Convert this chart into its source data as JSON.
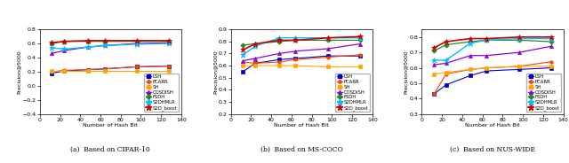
{
  "x": [
    12,
    24,
    48,
    64,
    96,
    128
  ],
  "cifar10": {
    "LSH": [
      0.18,
      0.21,
      0.23,
      0.24,
      0.27,
      0.28
    ],
    "PCARR": [
      0.2,
      0.22,
      0.23,
      0.24,
      0.27,
      0.28
    ],
    "SH": [
      0.21,
      0.21,
      0.21,
      0.21,
      0.21,
      0.21
    ],
    "COSDISH": [
      0.46,
      0.5,
      0.55,
      0.57,
      0.6,
      0.61
    ],
    "FSDH": [
      0.6,
      0.63,
      0.63,
      0.63,
      0.63,
      0.63
    ],
    "S2DHMLR": [
      0.54,
      0.52,
      0.55,
      0.57,
      0.59,
      0.6
    ],
    "S2D_boost": [
      0.61,
      0.63,
      0.64,
      0.64,
      0.64,
      0.64
    ]
  },
  "mscoco": {
    "LSH": [
      0.55,
      0.62,
      0.65,
      0.66,
      0.68,
      0.68
    ],
    "PCARR": [
      0.63,
      0.62,
      0.63,
      0.65,
      0.67,
      0.69
    ],
    "SH": [
      0.6,
      0.6,
      0.6,
      0.6,
      0.59,
      0.59
    ],
    "COSDISH": [
      0.64,
      0.66,
      0.7,
      0.72,
      0.74,
      0.78
    ],
    "FSDH": [
      0.77,
      0.78,
      0.8,
      0.81,
      0.81,
      0.81
    ],
    "S2DHMLR": [
      0.69,
      0.76,
      0.83,
      0.83,
      0.83,
      0.83
    ],
    "S2D_boost": [
      0.73,
      0.78,
      0.81,
      0.81,
      0.83,
      0.84
    ]
  },
  "nuswide": {
    "LSH": [
      0.43,
      0.49,
      0.55,
      0.58,
      0.59,
      0.6
    ],
    "PCARR": [
      0.43,
      0.56,
      0.59,
      0.6,
      0.61,
      0.64
    ],
    "SH": [
      0.56,
      0.57,
      0.59,
      0.6,
      0.61,
      0.61
    ],
    "COSDISH": [
      0.62,
      0.63,
      0.68,
      0.68,
      0.7,
      0.74
    ],
    "FSDH": [
      0.71,
      0.75,
      0.77,
      0.78,
      0.78,
      0.77
    ],
    "S2DHMLR": [
      0.65,
      0.65,
      0.76,
      0.78,
      0.79,
      0.79
    ],
    "S2D_boost": [
      0.73,
      0.77,
      0.79,
      0.79,
      0.8,
      0.8
    ]
  },
  "ylim_cifar": [
    -0.4,
    0.8
  ],
  "ylim_mscoco": [
    0.2,
    0.9
  ],
  "ylim_nuswide": [
    0.3,
    0.85
  ],
  "yticks_cifar": [
    -0.4,
    -0.2,
    0.0,
    0.2,
    0.4,
    0.6,
    0.8
  ],
  "yticks_mscoco": [
    0.2,
    0.3,
    0.4,
    0.5,
    0.6,
    0.7,
    0.8,
    0.9
  ],
  "yticks_nuswide": [
    0.3,
    0.4,
    0.5,
    0.6,
    0.7,
    0.8
  ],
  "colors": {
    "LSH": "#0000cd",
    "PCARR": "#ff4500",
    "SH": "#ffa500",
    "COSDISH": "#9400d3",
    "FSDH": "#228b22",
    "S2DHMLR": "#00bfff",
    "S2D_boost": "#cc0000"
  },
  "markers": {
    "LSH": "s",
    "PCARR": "o",
    "SH": "s",
    "COSDISH": "^",
    "FSDH": "P",
    "S2DHMLR": "*",
    "S2D_boost": "*"
  },
  "subtitles": [
    "(a)  Based on CIFAR-10",
    "(b)  Based on MS-COCO",
    "(c)  Based on NUS-WIDE"
  ],
  "ylabel": "Precision@5000",
  "xlabel": "Number of Hash Bit",
  "legend_loc": [
    "lower right",
    "lower right",
    "lower right"
  ]
}
